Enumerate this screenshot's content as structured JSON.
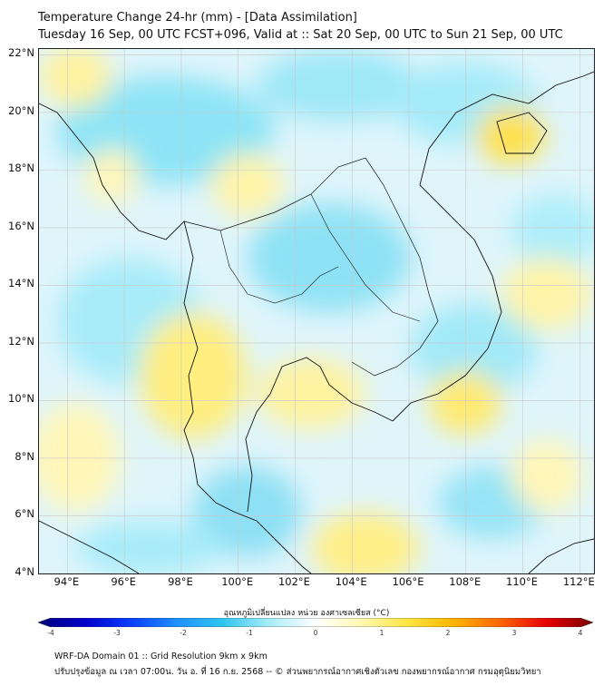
{
  "header": {
    "title": "Temperature Change 24-hr (mm) - [Data Assimilation]",
    "subtitle": "Tuesday 16 Sep, 00 UTC FCST+096, Valid at :: Sat 20 Sep, 00 UTC to Sun 21 Sep, 00 UTC"
  },
  "map": {
    "lon_range": [
      93,
      112.5
    ],
    "lat_range": [
      4,
      22.2
    ],
    "lat_ticks": [
      {
        "value": 22,
        "label": "22°N"
      },
      {
        "value": 20,
        "label": "20°N"
      },
      {
        "value": 18,
        "label": "18°N"
      },
      {
        "value": 16,
        "label": "16°N"
      },
      {
        "value": 14,
        "label": "14°N"
      },
      {
        "value": 12,
        "label": "12°N"
      },
      {
        "value": 10,
        "label": "10°N"
      },
      {
        "value": 8,
        "label": "8°N"
      },
      {
        "value": 6,
        "label": "6°N"
      },
      {
        "value": 4,
        "label": "4°N"
      }
    ],
    "lon_ticks": [
      {
        "value": 94,
        "label": "94°E"
      },
      {
        "value": 96,
        "label": "96°E"
      },
      {
        "value": 98,
        "label": "98°E"
      },
      {
        "value": 100,
        "label": "100°E"
      },
      {
        "value": 102,
        "label": "102°E"
      },
      {
        "value": 104,
        "label": "104°E"
      },
      {
        "value": 106,
        "label": "106°E"
      },
      {
        "value": 108,
        "label": "108°E"
      },
      {
        "value": 110,
        "label": "110°E"
      },
      {
        "value": 112,
        "label": "112°E"
      }
    ],
    "gridlines": true
  },
  "colorbar": {
    "title": "อุณหภูมิเปลี่ยนแปลง หน่วย องศาเซลเซียส (°C)",
    "min": -4,
    "max": 4,
    "ticks": [
      "-4",
      "-3",
      "-2",
      "-1",
      "0",
      "1",
      "2",
      "3",
      "4"
    ],
    "colors": [
      "#00007a",
      "#0000c8",
      "#0a3cff",
      "#1e90ff",
      "#2fc6f0",
      "#a8ecf8",
      "#ffffff",
      "#fff8b0",
      "#ffe640",
      "#ffb400",
      "#ff6400",
      "#e60000",
      "#7a0000"
    ]
  },
  "footer": {
    "line1": "WRF-DA Domain 01 :: Grid Resolution 9km x 9km",
    "line2": "ปรับปรุงข้อมูล ณ เวลา 07:00น. วัน อ. ที่ 16 ก.ย. 2568 -- © ส่วนพยากรณ์อากาศเชิงตัวเลข กองพยากรณ์อากาศ กรมอุตุนิยมวิทยา"
  }
}
